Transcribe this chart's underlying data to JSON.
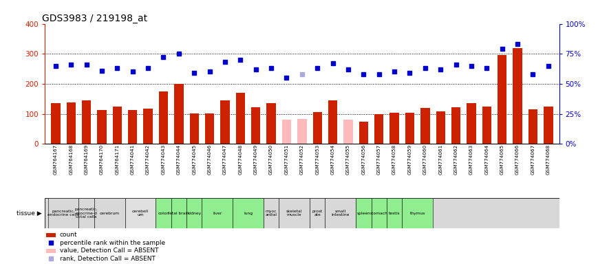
{
  "title": "GDS3983 / 219198_at",
  "samples": [
    "GSM764167",
    "GSM764168",
    "GSM764169",
    "GSM764170",
    "GSM764171",
    "GSM774041",
    "GSM774042",
    "GSM774043",
    "GSM774044",
    "GSM774045",
    "GSM774046",
    "GSM774047",
    "GSM774048",
    "GSM774049",
    "GSM774050",
    "GSM774051",
    "GSM774052",
    "GSM774053",
    "GSM774054",
    "GSM774055",
    "GSM774056",
    "GSM774057",
    "GSM774058",
    "GSM774059",
    "GSM774060",
    "GSM774061",
    "GSM774062",
    "GSM774063",
    "GSM774064",
    "GSM774065",
    "GSM774066",
    "GSM774067",
    "GSM774068"
  ],
  "bar_values": [
    135,
    138,
    145,
    113,
    124,
    113,
    118,
    175,
    200,
    101,
    102,
    145,
    170,
    123,
    135,
    80,
    83,
    105,
    145,
    80,
    75,
    100,
    103,
    103,
    120,
    108,
    123,
    135,
    125,
    296,
    320,
    115,
    125
  ],
  "bar_absent": [
    false,
    false,
    false,
    false,
    false,
    false,
    false,
    false,
    false,
    false,
    false,
    false,
    false,
    false,
    false,
    true,
    true,
    false,
    false,
    true,
    false,
    false,
    false,
    false,
    false,
    false,
    false,
    false,
    false,
    false,
    false,
    false,
    false
  ],
  "rank_values": [
    65,
    66,
    66,
    61,
    63,
    60,
    63,
    72,
    75,
    59,
    60,
    68,
    70,
    62,
    63,
    55,
    58,
    63,
    67,
    62,
    58,
    58,
    60,
    59,
    63,
    62,
    66,
    65,
    63,
    79,
    83,
    58,
    65
  ],
  "rank_absent": [
    false,
    false,
    false,
    false,
    false,
    false,
    false,
    false,
    false,
    false,
    false,
    false,
    false,
    false,
    false,
    false,
    true,
    false,
    false,
    false,
    false,
    false,
    false,
    false,
    false,
    false,
    false,
    false,
    false,
    false,
    false,
    false,
    false
  ],
  "tissues_layout": [
    {
      "label": "pancreatic,\nendocrine cells",
      "start": 0,
      "end": 1,
      "color": "#d8d8d8"
    },
    {
      "label": "pancreatic,\nexocrine-d\nuctal cells",
      "start": 2,
      "end": 2,
      "color": "#d8d8d8"
    },
    {
      "label": "cerebrum",
      "start": 3,
      "end": 4,
      "color": "#d8d8d8"
    },
    {
      "label": "cerebell\num",
      "start": 5,
      "end": 6,
      "color": "#e0e0e0"
    },
    {
      "label": "colon",
      "start": 7,
      "end": 7,
      "color": "#90ee90"
    },
    {
      "label": "fetal brain",
      "start": 8,
      "end": 8,
      "color": "#90ee90"
    },
    {
      "label": "kidney",
      "start": 9,
      "end": 9,
      "color": "#90ee90"
    },
    {
      "label": "liver",
      "start": 10,
      "end": 11,
      "color": "#90ee90"
    },
    {
      "label": "lung",
      "start": 12,
      "end": 13,
      "color": "#90ee90"
    },
    {
      "label": "myoc\nardial",
      "start": 14,
      "end": 14,
      "color": "#d8d8d8"
    },
    {
      "label": "skeletal\nmuscle",
      "start": 15,
      "end": 16,
      "color": "#d8d8d8"
    },
    {
      "label": "prost\nate",
      "start": 17,
      "end": 17,
      "color": "#d8d8d8"
    },
    {
      "label": "small\nintestine",
      "start": 18,
      "end": 19,
      "color": "#d8d8d8"
    },
    {
      "label": "spleen",
      "start": 20,
      "end": 20,
      "color": "#90ee90"
    },
    {
      "label": "stomach",
      "start": 21,
      "end": 21,
      "color": "#90ee90"
    },
    {
      "label": "testis",
      "start": 22,
      "end": 22,
      "color": "#90ee90"
    },
    {
      "label": "thymus",
      "start": 23,
      "end": 24,
      "color": "#90ee90"
    }
  ],
  "ylim_left": [
    0,
    400
  ],
  "ylim_right": [
    0,
    100
  ],
  "yticks_left": [
    0,
    100,
    200,
    300,
    400
  ],
  "yticks_right": [
    0,
    25,
    50,
    75,
    100
  ],
  "bar_color": "#cc2200",
  "bar_absent_color": "#ffbbbb",
  "dot_color": "#0000cc",
  "dot_absent_color": "#aaaadd",
  "grid_lines": [
    100,
    200,
    300
  ],
  "title_fontsize": 10
}
